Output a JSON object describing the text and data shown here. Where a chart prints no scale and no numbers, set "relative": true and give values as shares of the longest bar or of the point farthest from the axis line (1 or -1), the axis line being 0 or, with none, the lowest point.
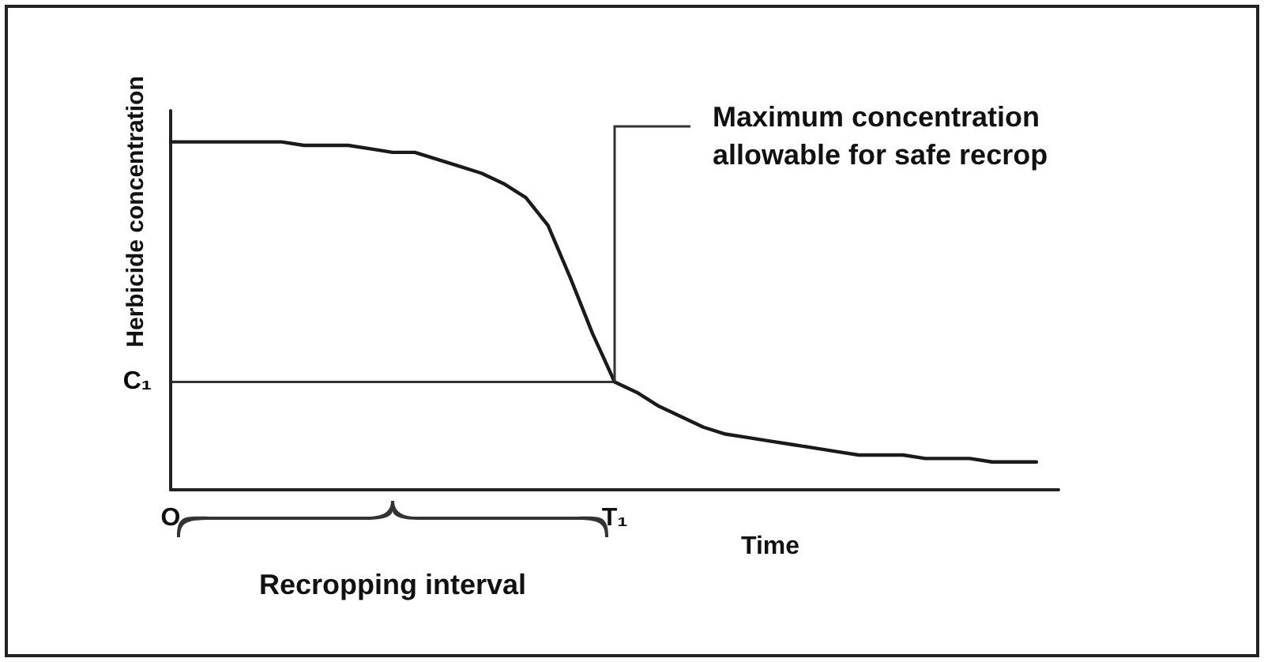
{
  "chart_data": {
    "type": "line",
    "relative": true,
    "xlabel": "Time",
    "ylabel": "Herbicide concentration",
    "categories": [
      "O",
      null,
      null,
      null,
      null,
      null,
      null,
      null,
      null,
      null,
      null,
      null,
      null,
      null,
      null,
      null,
      null,
      null,
      null,
      null,
      "T₁",
      null,
      null,
      null,
      null,
      null,
      null,
      null,
      null,
      null,
      null,
      null,
      null,
      null,
      null,
      null,
      null,
      null,
      null,
      null,
      null
    ],
    "values": [
      1.0,
      1.0,
      1.0,
      1.0,
      1.0,
      1.0,
      0.99,
      0.99,
      0.99,
      0.98,
      0.97,
      0.97,
      0.95,
      0.93,
      0.91,
      0.88,
      0.84,
      0.76,
      0.61,
      0.45,
      0.31,
      0.28,
      0.24,
      0.21,
      0.18,
      0.16,
      0.15,
      0.14,
      0.13,
      0.12,
      0.11,
      0.1,
      0.1,
      0.1,
      0.09,
      0.09,
      0.09,
      0.08,
      0.08,
      0.08,
      null
    ],
    "color": "#1a1a1a",
    "marker": "none",
    "line_style": "solid",
    "grid": false,
    "ref_lines": [
      {
        "axis": "y",
        "value": 0.31,
        "label": "C₁"
      }
    ],
    "annotations": [
      "Maximum concentration allowable for safe recrop",
      "Recropping interval"
    ]
  }
}
